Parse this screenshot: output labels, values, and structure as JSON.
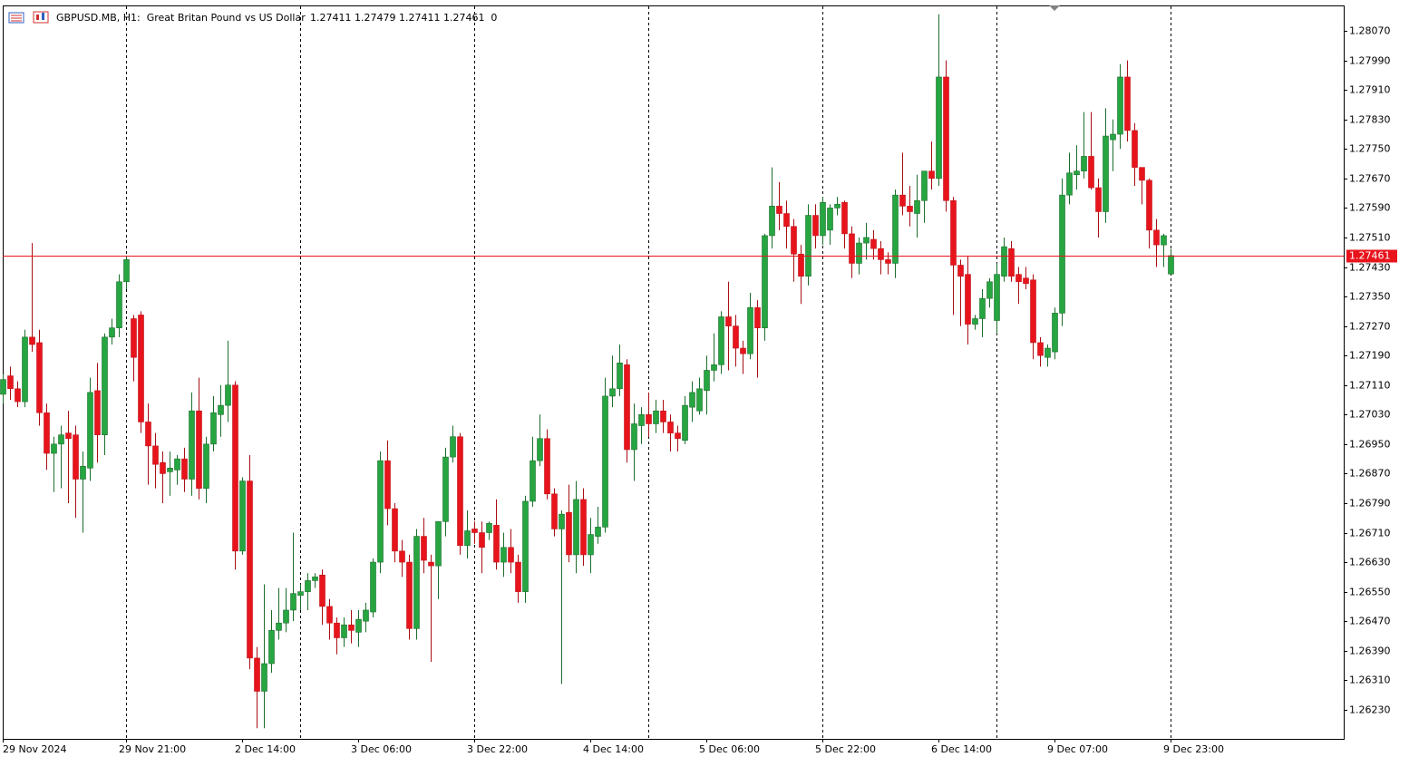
{
  "chart_data": {
    "type": "candlestick",
    "title": "GBPUSD.MB, H1:  Great Britan Pound vs US Dollar",
    "ohlc_info": "1.27411 1.27479 1.27411 1.27461  0",
    "categories": [
      "29 Nov 2024",
      null,
      null,
      null,
      null,
      null,
      null,
      null,
      null,
      null,
      null,
      null,
      null,
      null,
      null,
      null,
      null,
      "29 Nov 21:00",
      null,
      null,
      null,
      null,
      null,
      null,
      null,
      null,
      null,
      null,
      null,
      null,
      null,
      null,
      null,
      "2 Dec 14:00",
      null,
      null,
      null,
      null,
      null,
      null,
      null,
      null,
      null,
      null,
      null,
      null,
      null,
      null,
      null,
      "3 Dec 06:00",
      null,
      null,
      null,
      null,
      null,
      null,
      null,
      null,
      null,
      null,
      null,
      null,
      null,
      null,
      null,
      "3 Dec 22:00",
      null,
      null,
      null,
      null,
      null,
      null,
      null,
      null,
      null,
      null,
      null,
      null,
      null,
      null,
      null,
      "4 Dec 14:00",
      null,
      null,
      null,
      null,
      null,
      null,
      null,
      null,
      null,
      null,
      null,
      null,
      null,
      null,
      null,
      "5 Dec 06:00",
      null,
      null,
      null,
      null,
      null,
      null,
      null,
      null,
      null,
      null,
      null,
      null,
      null,
      null,
      null,
      "5 Dec 22:00",
      null,
      null,
      null,
      null,
      null,
      null,
      null,
      null,
      null,
      null,
      null,
      null,
      null,
      null,
      null,
      "6 Dec 14:00",
      null,
      null,
      null,
      null,
      null,
      null,
      null,
      null,
      null,
      null,
      null,
      null,
      null,
      null,
      null,
      "9 Dec 07:00",
      null,
      null,
      null,
      null,
      null,
      null,
      null,
      null,
      null,
      null,
      null,
      null,
      null,
      null,
      null,
      "9 Dec 23:00"
    ],
    "open": [
      1.27085,
      1.27135,
      1.271,
      1.27065,
      1.2724,
      1.27225,
      1.27035,
      1.26925,
      1.2695,
      1.2698,
      1.26975,
      1.26855,
      1.26885,
      1.27095,
      1.26975,
      1.2724,
      1.27265,
      1.2739,
      1.2729,
      1.273,
      1.2701,
      1.26945,
      1.269,
      1.26875,
      1.2688,
      1.2691,
      1.26855,
      1.2704,
      1.2683,
      1.2695,
      1.2703,
      1.27055,
      1.2711,
      1.2666,
      1.2685,
      1.2637,
      1.2628,
      1.26355,
      1.26445,
      1.26465,
      1.265,
      1.2654,
      1.2655,
      1.2658,
      1.26595,
      1.2651,
      1.26465,
      1.26425,
      1.2646,
      1.2644,
      1.2647,
      1.26495,
      1.2663,
      1.26905,
      1.26775,
      1.2666,
      1.2663,
      1.2645,
      1.267,
      1.2663,
      1.2662,
      1.2674,
      1.26915,
      1.2697,
      1.26675,
      1.2672,
      1.2671,
      1.2671,
      1.2673,
      1.2663,
      1.2667,
      1.2663,
      1.2655,
      1.26795,
      1.26905,
      1.26965,
      1.26815,
      1.2672,
      1.26765,
      1.2665,
      1.268,
      1.2665,
      1.267,
      1.26725,
      1.2708,
      1.271,
      1.27165,
      1.26935,
      1.27,
      1.2703,
      1.27005,
      1.2704,
      1.2701,
      1.2698,
      1.2696,
      1.2705,
      1.2704,
      1.27095,
      1.2715,
      1.27165,
      1.27295,
      1.2727,
      1.2721,
      1.27195,
      1.2732,
      1.27265,
      1.27515,
      1.27595,
      1.27575,
      1.2754,
      1.27465,
      1.27405,
      1.2757,
      1.27515,
      1.2753,
      1.2759,
      1.27605,
      1.2752,
      1.2744,
      1.27495,
      1.27505,
      1.2748,
      1.2745,
      1.2744,
      1.27625,
      1.27595,
      1.27575,
      1.2761,
      1.2769,
      1.2767,
      1.27945,
      1.2761,
      1.27435,
      1.2741,
      1.27275,
      1.2729,
      1.27345,
      1.27285,
      1.27405,
      1.2748,
      1.2741,
      1.274,
      1.27395,
      1.27225,
      1.27185,
      1.272,
      1.27305,
      1.27625,
      1.2768,
      1.2769,
      1.2773,
      1.27645,
      1.2758,
      1.27775,
      1.2779,
      1.27945,
      1.278,
      1.277,
      1.27665,
      1.2753,
      1.2749,
      1.27411
    ],
    "high": [
      1.2714,
      1.2716,
      1.2712,
      1.2726,
      1.27495,
      1.2726,
      1.2706,
      1.2697,
      1.27,
      1.2704,
      1.27,
      1.2693,
      1.2713,
      1.2717,
      1.2725,
      1.2729,
      1.2741,
      1.2746,
      1.273,
      1.2731,
      1.2706,
      1.2698,
      1.2693,
      1.2693,
      1.2692,
      1.2694,
      1.2709,
      1.2713,
      1.2697,
      1.2708,
      1.2711,
      1.2723,
      1.2712,
      1.2686,
      1.2692,
      1.264,
      1.2657,
      1.265,
      1.2656,
      1.2656,
      1.2671,
      1.2657,
      1.266,
      1.266,
      1.2661,
      1.2653,
      1.2648,
      1.2648,
      1.265,
      1.265,
      1.2652,
      1.2664,
      1.2693,
      1.2696,
      1.2679,
      1.2669,
      1.2665,
      1.2672,
      1.2675,
      1.2665,
      1.2674,
      1.2694,
      1.27,
      1.2698,
      1.2677,
      1.2674,
      1.2674,
      1.2674,
      1.268,
      1.2671,
      1.2672,
      1.2665,
      1.2681,
      1.2697,
      1.2703,
      1.2699,
      1.2683,
      1.2677,
      1.2684,
      1.2685,
      1.2683,
      1.2675,
      1.2678,
      1.2713,
      1.2719,
      1.2722,
      1.2718,
      1.2706,
      1.2705,
      1.2709,
      1.2707,
      1.2707,
      1.2703,
      1.27,
      1.2708,
      1.2712,
      1.2713,
      1.2719,
      1.2725,
      1.2731,
      1.2739,
      1.273,
      1.2723,
      1.2736,
      1.2734,
      1.2752,
      1.277,
      1.2766,
      1.2761,
      1.2756,
      1.2749,
      1.276,
      1.276,
      1.2762,
      1.276,
      1.2762,
      1.2761,
      1.2754,
      1.2751,
      1.2755,
      1.2753,
      1.275,
      1.2747,
      1.2764,
      1.2774,
      1.2765,
      1.2768,
      1.2769,
      1.2777,
      1.28115,
      1.2799,
      1.2762,
      1.2745,
      1.2746,
      1.273,
      1.2737,
      1.274,
      1.2744,
      1.2751,
      1.275,
      1.2743,
      1.2743,
      1.2741,
      1.2724,
      1.2722,
      1.2732,
      1.2767,
      1.2774,
      1.2776,
      1.2785,
      1.2785,
      1.2767,
      1.2786,
      1.2783,
      1.2798,
      1.2799,
      1.2782,
      1.277,
      1.2767,
      1.2756,
      1.2752,
      1.27479
    ],
    "low": [
      1.2706,
      1.2707,
      1.2705,
      1.2705,
      1.272,
      1.27,
      1.2688,
      1.2682,
      1.2683,
      1.2679,
      1.2675,
      1.2671,
      1.2685,
      1.269,
      1.2692,
      1.2722,
      1.2724,
      1.2737,
      1.2712,
      1.2698,
      1.2684,
      1.2683,
      1.2679,
      1.2681,
      1.2684,
      1.2682,
      1.2681,
      1.268,
      1.2679,
      1.2693,
      1.2697,
      1.2701,
      1.2661,
      1.2665,
      1.2634,
      1.2618,
      1.2618,
      1.2633,
      1.2642,
      1.2644,
      1.2647,
      1.265,
      1.265,
      1.2656,
      1.2646,
      1.2642,
      1.2638,
      1.264,
      1.2641,
      1.264,
      1.2644,
      1.2648,
      1.266,
      1.2673,
      1.2663,
      1.2659,
      1.2642,
      1.2642,
      1.266,
      1.2636,
      1.2653,
      1.267,
      1.269,
      1.2665,
      1.2664,
      1.2668,
      1.266,
      1.2669,
      1.2661,
      1.2659,
      1.266,
      1.2652,
      1.2652,
      1.2678,
      1.2689,
      1.268,
      1.267,
      1.263,
      1.2663,
      1.266,
      1.2662,
      1.266,
      1.2668,
      1.2671,
      1.2705,
      1.2708,
      1.269,
      1.2685,
      1.2695,
      1.2697,
      1.2698,
      1.2698,
      1.2693,
      1.2693,
      1.2695,
      1.2701,
      1.2703,
      1.2703,
      1.2712,
      1.2714,
      1.2715,
      1.2716,
      1.2714,
      1.2718,
      1.2713,
      1.2723,
      1.2748,
      1.2753,
      1.2748,
      1.2739,
      1.2733,
      1.2738,
      1.2748,
      1.2749,
      1.2749,
      1.2757,
      1.2748,
      1.274,
      1.2741,
      1.2745,
      1.2745,
      1.2741,
      1.2741,
      1.274,
      1.2757,
      1.2754,
      1.2751,
      1.2755,
      1.2764,
      1.2765,
      1.2758,
      1.273,
      1.2727,
      1.2722,
      1.2726,
      1.2724,
      1.2732,
      1.2725,
      1.2739,
      1.2739,
      1.2733,
      1.2737,
      1.2718,
      1.2716,
      1.2716,
      1.2718,
      1.2727,
      1.276,
      1.2764,
      1.2767,
      1.2764,
      1.2751,
      1.2755,
      1.2769,
      1.2775,
      1.2777,
      1.2765,
      1.276,
      1.2748,
      1.2743,
      1.2743,
      1.27411
    ],
    "close": [
      1.27125,
      1.271,
      1.27065,
      1.2724,
      1.2722,
      1.27035,
      1.26925,
      1.2695,
      1.26975,
      1.26965,
      1.26855,
      1.2689,
      1.2709,
      1.26975,
      1.2724,
      1.27265,
      1.2739,
      1.2745,
      1.27185,
      1.2701,
      1.26945,
      1.26895,
      1.2687,
      1.26885,
      1.2691,
      1.26855,
      1.2704,
      1.2683,
      1.2695,
      1.27035,
      1.27055,
      1.2711,
      1.2666,
      1.2685,
      1.2637,
      1.2628,
      1.26355,
      1.26445,
      1.26465,
      1.265,
      1.26545,
      1.2655,
      1.2658,
      1.2659,
      1.2651,
      1.26465,
      1.26425,
      1.2646,
      1.26445,
      1.26475,
      1.265,
      1.2663,
      1.26905,
      1.26775,
      1.2666,
      1.2663,
      1.2645,
      1.267,
      1.26635,
      1.2662,
      1.2674,
      1.26915,
      1.2697,
      1.26675,
      1.26715,
      1.2671,
      1.2667,
      1.26735,
      1.2663,
      1.2667,
      1.2663,
      1.2655,
      1.26795,
      1.26905,
      1.26965,
      1.26815,
      1.2672,
      1.2676,
      1.2665,
      1.268,
      1.2665,
      1.26705,
      1.26725,
      1.2708,
      1.271,
      1.2717,
      1.26935,
      1.27005,
      1.2703,
      1.27005,
      1.2704,
      1.2701,
      1.2698,
      1.26965,
      1.27055,
      1.2709,
      1.271,
      1.2715,
      1.27165,
      1.27295,
      1.2727,
      1.2721,
      1.27195,
      1.2732,
      1.27265,
      1.27515,
      1.27595,
      1.27575,
      1.2754,
      1.27465,
      1.27405,
      1.2757,
      1.27515,
      1.27605,
      1.2759,
      1.276,
      1.2752,
      1.2744,
      1.27495,
      1.2751,
      1.2748,
      1.2745,
      1.2744,
      1.27625,
      1.27595,
      1.2758,
      1.2761,
      1.2769,
      1.2767,
      1.27945,
      1.2761,
      1.27435,
      1.27405,
      1.27275,
      1.2729,
      1.27345,
      1.2739,
      1.2741,
      1.27485,
      1.27405,
      1.2739,
      1.27385,
      1.27225,
      1.2719,
      1.2721,
      1.27305,
      1.27625,
      1.27685,
      1.2769,
      1.2773,
      1.27645,
      1.2758,
      1.27785,
      1.2779,
      1.27945,
      1.278,
      1.277,
      1.27665,
      1.2753,
      1.2749,
      1.27515,
      1.27461
    ],
    "up_color": "#26a541",
    "down_color": "#e8141c",
    "ylim": [
      1.26151,
      1.28139
    ],
    "yticks": [
      {
        "value": 1.2807,
        "label": "1.28070"
      },
      {
        "value": 1.2799,
        "label": "1.27990"
      },
      {
        "value": 1.2791,
        "label": "1.27910"
      },
      {
        "value": 1.2783,
        "label": "1.27830"
      },
      {
        "value": 1.2775,
        "label": "1.27750"
      },
      {
        "value": 1.2767,
        "label": "1.27670"
      },
      {
        "value": 1.2759,
        "label": "1.27590"
      },
      {
        "value": 1.2751,
        "label": "1.27510"
      },
      {
        "value": 1.2743,
        "label": "1.27430"
      },
      {
        "value": 1.2735,
        "label": "1.27350"
      },
      {
        "value": 1.2727,
        "label": "1.27270"
      },
      {
        "value": 1.2719,
        "label": "1.27190"
      },
      {
        "value": 1.2711,
        "label": "1.27110"
      },
      {
        "value": 1.2703,
        "label": "1.27030"
      },
      {
        "value": 1.2695,
        "label": "1.26950"
      },
      {
        "value": 1.2687,
        "label": "1.26870"
      },
      {
        "value": 1.2679,
        "label": "1.26790"
      },
      {
        "value": 1.2671,
        "label": "1.26710"
      },
      {
        "value": 1.2663,
        "label": "1.26630"
      },
      {
        "value": 1.2655,
        "label": "1.26550"
      },
      {
        "value": 1.2647,
        "label": "1.26470"
      },
      {
        "value": 1.2639,
        "label": "1.26390"
      },
      {
        "value": 1.2631,
        "label": "1.26310"
      },
      {
        "value": 1.2623,
        "label": "1.26230"
      }
    ],
    "current_price": {
      "value": 1.27461,
      "label": "1.27461"
    },
    "price_line_color": "#e8141c",
    "grid": true
  }
}
